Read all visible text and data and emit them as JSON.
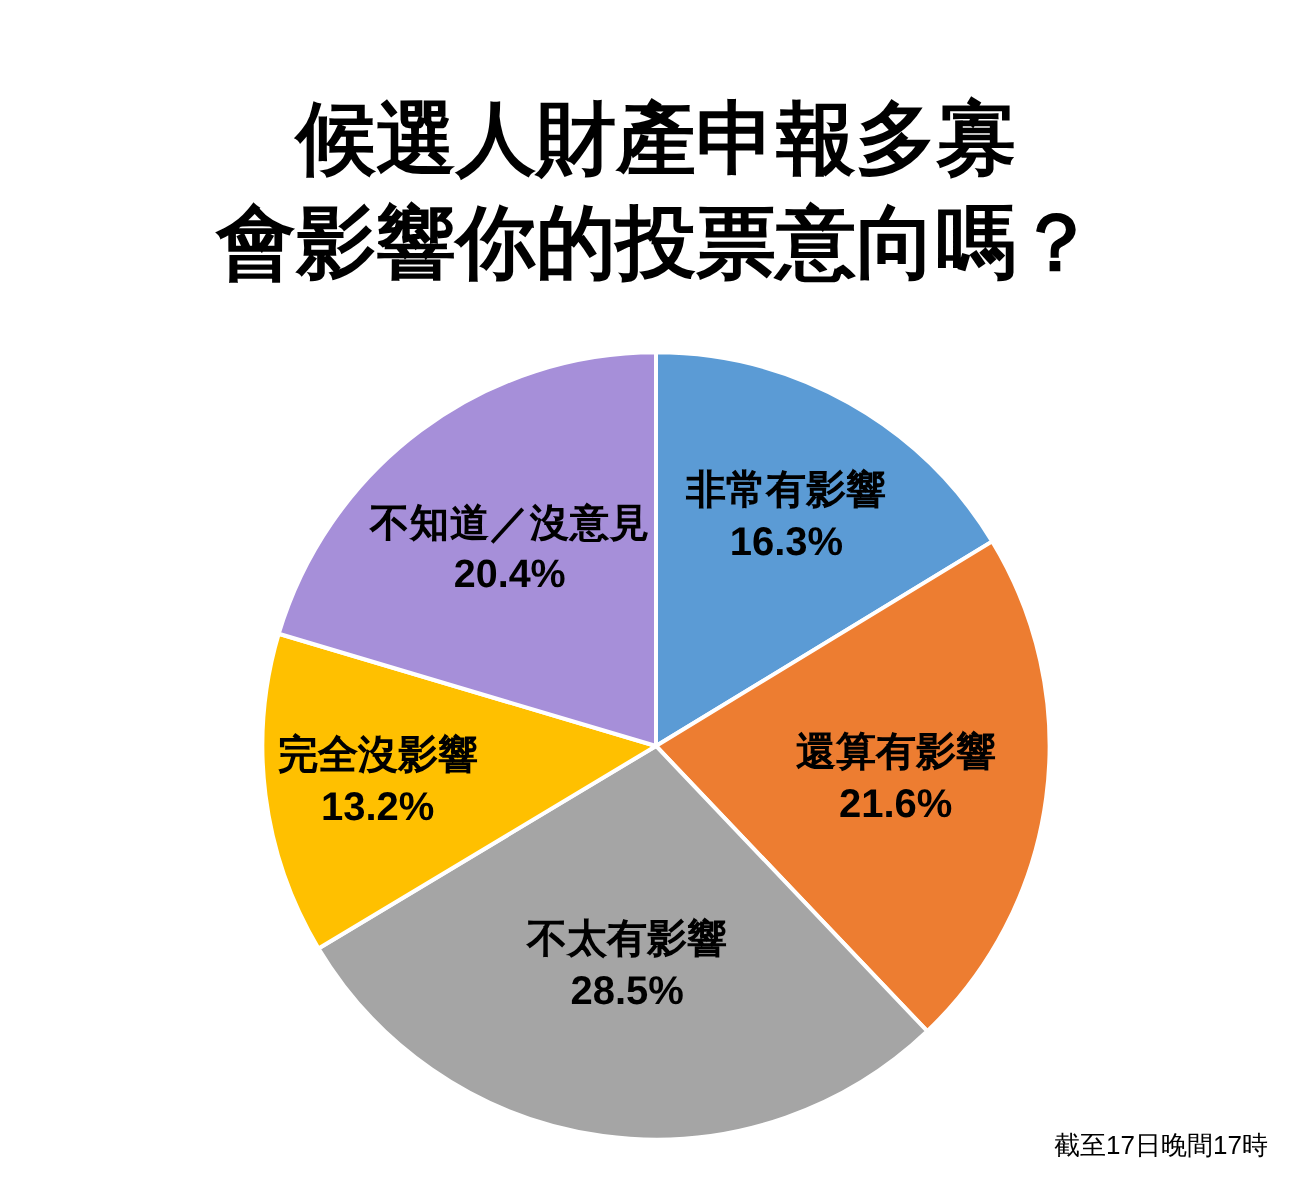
{
  "chart_data": {
    "type": "pie",
    "title": "候選人財產申報多寡",
    "subtitle": "會影響你的投票意向嗎？",
    "categories": [
      "非常有影響",
      "還算有影響",
      "不太有影響",
      "完全沒影響",
      "不知道／沒意見"
    ],
    "values": [
      16.3,
      21.6,
      28.5,
      13.2,
      20.4
    ],
    "value_labels": [
      "16.3%",
      "21.6%",
      "28.5%",
      "13.2%",
      "20.4%"
    ],
    "colors": [
      "#5b9bd5",
      "#ed7d31",
      "#a5a5a5",
      "#ffc000",
      "#a68fd9"
    ],
    "annotations": [
      "截至17日晚間17時"
    ],
    "legend": false
  }
}
